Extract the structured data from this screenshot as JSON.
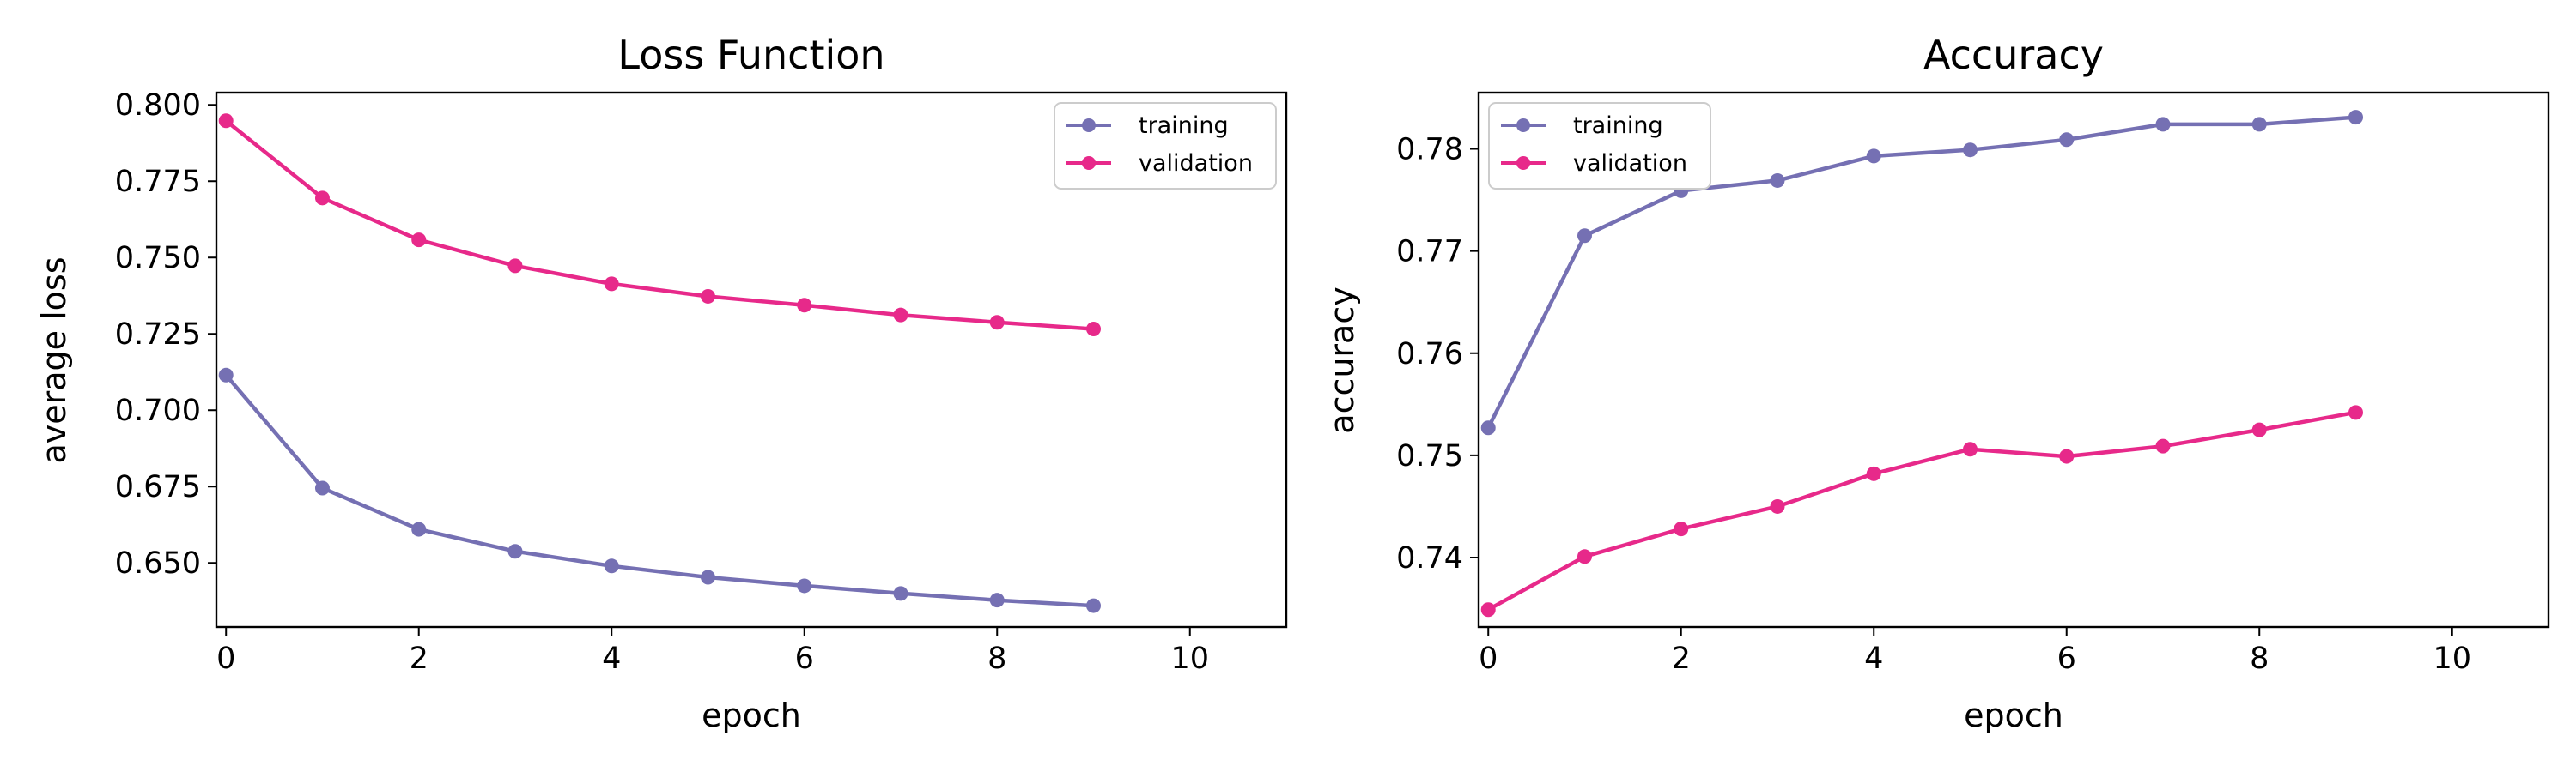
{
  "colors": {
    "training": "#7570b3",
    "validation": "#e7298a"
  },
  "chart_data": [
    {
      "type": "line",
      "title": "Loss Function",
      "xlabel": "epoch",
      "ylabel": "average loss",
      "xlim": [
        -0.1,
        11
      ],
      "ylim": [
        0.629,
        0.804
      ],
      "xticks": [
        0,
        2,
        4,
        6,
        8,
        10
      ],
      "xtick_labels": [
        "0",
        "2",
        "4",
        "6",
        "8",
        "10"
      ],
      "yticks": [
        0.65,
        0.675,
        0.7,
        0.725,
        0.75,
        0.775,
        0.8
      ],
      "ytick_labels": [
        "0.650",
        "0.675",
        "0.700",
        "0.725",
        "0.750",
        "0.775",
        "0.800"
      ],
      "legend_position": "top-right",
      "grid": false,
      "x": [
        0,
        1,
        2,
        3,
        4,
        5,
        6,
        7,
        8,
        9
      ],
      "series": [
        {
          "name": "training",
          "color": "#7570b3",
          "values": [
            0.7115,
            0.6745,
            0.661,
            0.6538,
            0.649,
            0.6453,
            0.6425,
            0.64,
            0.6378,
            0.636
          ]
        },
        {
          "name": "validation",
          "color": "#e7298a",
          "values": [
            0.7948,
            0.7695,
            0.7558,
            0.7473,
            0.7414,
            0.7373,
            0.7344,
            0.7312,
            0.7288,
            0.7266
          ]
        }
      ]
    },
    {
      "type": "line",
      "title": "Accuracy",
      "xlabel": "epoch",
      "ylabel": "accuracy",
      "xlim": [
        -0.1,
        11
      ],
      "ylim": [
        0.7332,
        0.7855
      ],
      "xticks": [
        0,
        2,
        4,
        6,
        8,
        10
      ],
      "xtick_labels": [
        "0",
        "2",
        "4",
        "6",
        "8",
        "10"
      ],
      "yticks": [
        0.74,
        0.75,
        0.76,
        0.77,
        0.78
      ],
      "ytick_labels": [
        "0.74",
        "0.75",
        "0.76",
        "0.77",
        "0.78"
      ],
      "legend_position": "top-left",
      "grid": false,
      "x": [
        0,
        1,
        2,
        3,
        4,
        5,
        6,
        7,
        8,
        9
      ],
      "series": [
        {
          "name": "training",
          "color": "#7570b3",
          "values": [
            0.7527,
            0.7715,
            0.7759,
            0.7769,
            0.7793,
            0.7799,
            0.7809,
            0.7824,
            0.7824,
            0.7831
          ]
        },
        {
          "name": "validation",
          "color": "#e7298a",
          "values": [
            0.7349,
            0.7401,
            0.7428,
            0.745,
            0.7482,
            0.7506,
            0.7499,
            0.7509,
            0.7525,
            0.7542
          ]
        }
      ]
    }
  ]
}
